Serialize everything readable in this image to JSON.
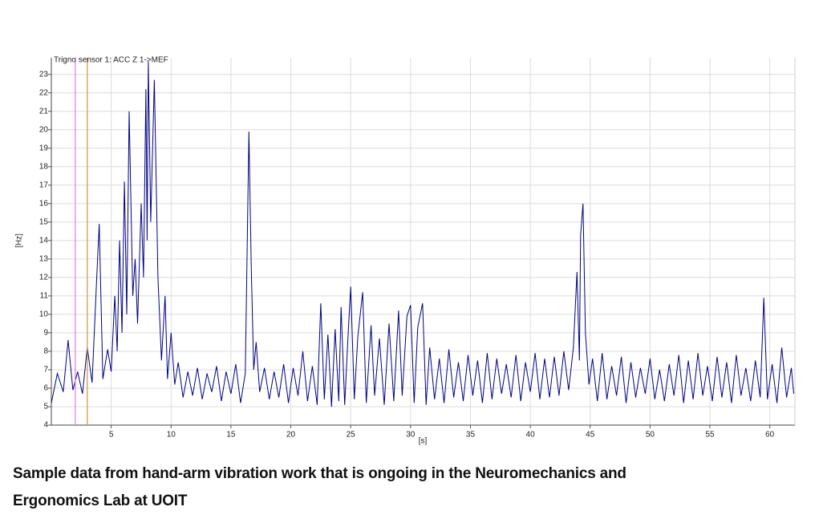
{
  "chart_data": {
    "type": "line",
    "x_label": "[s]",
    "y_label": "[Hz]",
    "xlim": [
      0,
      62.1
    ],
    "ylim": [
      4,
      23.9
    ],
    "xticks": [
      5,
      10,
      15,
      20,
      25,
      30,
      35,
      40,
      45,
      50,
      55,
      60
    ],
    "yticks": [
      4,
      5,
      6,
      7,
      8,
      9,
      10,
      11,
      12,
      13,
      14,
      15,
      16,
      17,
      18,
      19,
      20,
      21,
      22,
      23
    ],
    "grid": true,
    "cursors": [
      {
        "x": 2,
        "color": "#e07be0"
      },
      {
        "x": 3,
        "color": "#c8963c"
      }
    ],
    "x": [
      0,
      0.5,
      1,
      1.4,
      1.8,
      2.2,
      2.6,
      3,
      3.4,
      3.8,
      4,
      4.3,
      4.7,
      5,
      5.3,
      5.5,
      5.7,
      5.9,
      6.1,
      6.3,
      6.5,
      6.8,
      7,
      7.2,
      7.5,
      7.7,
      7.9,
      8,
      8.1,
      8.3,
      8.6,
      8.9,
      9.2,
      9.5,
      9.7,
      10,
      10.3,
      10.6,
      11,
      11.4,
      11.8,
      12.2,
      12.6,
      13,
      13.4,
      13.8,
      14.2,
      14.6,
      15,
      15.4,
      15.8,
      16.2,
      16.5,
      16.7,
      16.9,
      17.1,
      17.4,
      17.8,
      18.2,
      18.6,
      19,
      19.4,
      19.8,
      20.2,
      20.6,
      21,
      21.4,
      21.8,
      22.2,
      22.5,
      22.8,
      23.1,
      23.4,
      23.7,
      24,
      24.2,
      24.5,
      24.8,
      25,
      25.3,
      25.6,
      26,
      26.3,
      26.7,
      27,
      27.4,
      27.8,
      28.2,
      28.6,
      29,
      29.3,
      29.7,
      30,
      30.3,
      30.6,
      31,
      31.3,
      31.6,
      32,
      32.4,
      32.8,
      33.2,
      33.6,
      34,
      34.4,
      34.8,
      35.2,
      35.6,
      36,
      36.4,
      36.8,
      37.2,
      37.6,
      38,
      38.4,
      38.8,
      39.2,
      39.6,
      40,
      40.4,
      40.8,
      41.2,
      41.6,
      42,
      42.4,
      42.8,
      43.2,
      43.6,
      43.9,
      44.1,
      44.2,
      44.4,
      44.6,
      44.9,
      45.2,
      45.6,
      46,
      46.4,
      46.8,
      47.2,
      47.6,
      48,
      48.4,
      48.8,
      49.2,
      49.6,
      50,
      50.4,
      50.8,
      51.2,
      51.6,
      52,
      52.4,
      52.8,
      53.2,
      53.6,
      54,
      54.4,
      54.8,
      55.2,
      55.6,
      56,
      56.4,
      56.8,
      57.2,
      57.6,
      58,
      58.4,
      58.8,
      59.2,
      59.5,
      59.8,
      60.2,
      60.6,
      61,
      61.4,
      61.8,
      62
    ],
    "series": [
      {
        "name": "Trigno sensor 1: ACC Z 1->MEF",
        "color": "#000080",
        "values": [
          5.2,
          6.8,
          5.8,
          8.6,
          5.9,
          6.9,
          5.7,
          8.2,
          6.3,
          12.1,
          14.9,
          6.5,
          8.1,
          6.9,
          11,
          8,
          14,
          9,
          17.2,
          10,
          21,
          11,
          13,
          9.5,
          16,
          12,
          22.2,
          14,
          23.7,
          15,
          22.7,
          12,
          7.5,
          11,
          6.5,
          9,
          6.2,
          7.4,
          5.5,
          6.9,
          5.6,
          7.1,
          5.4,
          6.8,
          5.8,
          7.2,
          5.3,
          6.9,
          5.7,
          7.3,
          5.2,
          6.8,
          19.9,
          12.4,
          7,
          8.5,
          5.8,
          7.1,
          5.4,
          6.9,
          5.5,
          7.3,
          5.2,
          7.1,
          5.6,
          8,
          5.3,
          7.2,
          5.1,
          10.6,
          5.4,
          8.9,
          5,
          9.2,
          5.3,
          10.4,
          5.1,
          9.1,
          11.5,
          5.4,
          8.8,
          11.2,
          5.2,
          9.4,
          5.6,
          8.7,
          5.1,
          9.5,
          5.3,
          10.2,
          5.6,
          9.9,
          10.5,
          5.2,
          9.3,
          10.6,
          5.1,
          8.2,
          5.4,
          7.6,
          5.2,
          8.1,
          5.5,
          7.4,
          5.3,
          7.8,
          5.6,
          7.5,
          5.2,
          7.9,
          5.4,
          7.6,
          5.7,
          7.3,
          5.5,
          7.8,
          5.3,
          7.4,
          5.8,
          7.9,
          5.4,
          7.6,
          5.5,
          7.7,
          5.6,
          8,
          5.9,
          8.2,
          12.3,
          7.5,
          14.3,
          16,
          9,
          6.2,
          7.6,
          5.3,
          7.9,
          5.4,
          7.2,
          5.6,
          7.7,
          5.2,
          7.4,
          5.5,
          7.1,
          5.7,
          7.6,
          5.4,
          7,
          5.3,
          7.3,
          5.6,
          7.8,
          5.2,
          7.5,
          5.4,
          7.9,
          5.6,
          7.2,
          5.3,
          7.7,
          5.5,
          7.4,
          5.2,
          7.8,
          5.6,
          7.1,
          5.3,
          7.5,
          5.5,
          10.9,
          5.4,
          7.3,
          5.2,
          8.2,
          5.5,
          7.1,
          5.7
        ]
      }
    ]
  },
  "caption": [
    "Sample data from hand-arm vibration work that is ongoing in the Neuromechanics and",
    "Ergonomics Lab at UOIT"
  ]
}
